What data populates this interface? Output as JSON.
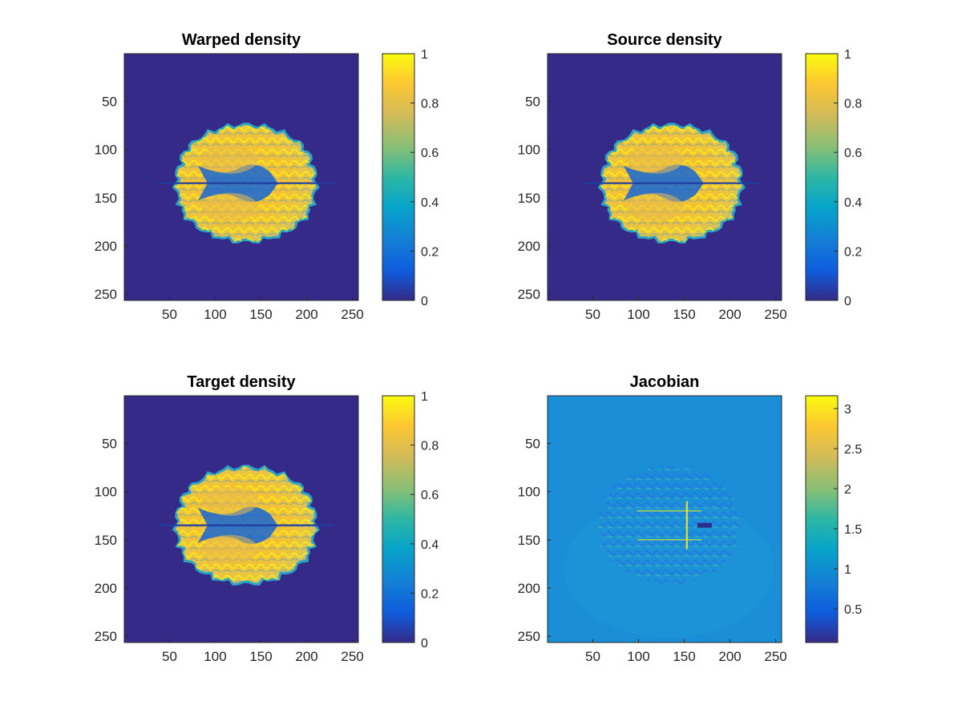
{
  "figure": {
    "panels": [
      {
        "id": "warped",
        "title": "Warped density",
        "image": "brain-slice",
        "background_color": "#352a87",
        "x_ticks": [
          "50",
          "100",
          "150",
          "200",
          "250"
        ],
        "y_ticks": [
          "50",
          "100",
          "150",
          "200",
          "250"
        ],
        "colorbar": {
          "ticks": [
            "0",
            "0.2",
            "0.4",
            "0.6",
            "0.8",
            "1"
          ],
          "range": [
            0,
            1
          ]
        }
      },
      {
        "id": "source",
        "title": "Source density",
        "image": "brain-slice",
        "background_color": "#352a87",
        "x_ticks": [
          "50",
          "100",
          "150",
          "200",
          "250"
        ],
        "y_ticks": [
          "50",
          "100",
          "150",
          "200",
          "250"
        ],
        "colorbar": {
          "ticks": [
            "0",
            "0.2",
            "0.4",
            "0.6",
            "0.8",
            "1"
          ],
          "range": [
            0,
            1
          ]
        }
      },
      {
        "id": "target",
        "title": "Target density",
        "image": "brain-slice",
        "background_color": "#352a87",
        "x_ticks": [
          "50",
          "100",
          "150",
          "200",
          "250"
        ],
        "y_ticks": [
          "50",
          "100",
          "150",
          "200",
          "250"
        ],
        "colorbar": {
          "ticks": [
            "0",
            "0.2",
            "0.4",
            "0.6",
            "0.8",
            "1"
          ],
          "range": [
            0,
            1
          ]
        }
      },
      {
        "id": "jacobian",
        "title": "Jacobian",
        "image": "jacobian-map",
        "background_color": "#1a8fd8",
        "x_ticks": [
          "50",
          "100",
          "150",
          "200",
          "250"
        ],
        "y_ticks": [
          "50",
          "100",
          "150",
          "200",
          "250"
        ],
        "colorbar": {
          "ticks": [
            "0.5",
            "1",
            "1.5",
            "2",
            "2.5",
            "3"
          ],
          "range": [
            0.08,
            3.16
          ]
        }
      }
    ],
    "colormap": [
      "#352a87",
      "#0363e1",
      "#1485d4",
      "#06a7c6",
      "#38b99e",
      "#92bf73",
      "#d9ba56",
      "#fcce2e",
      "#f9fb0e"
    ]
  }
}
